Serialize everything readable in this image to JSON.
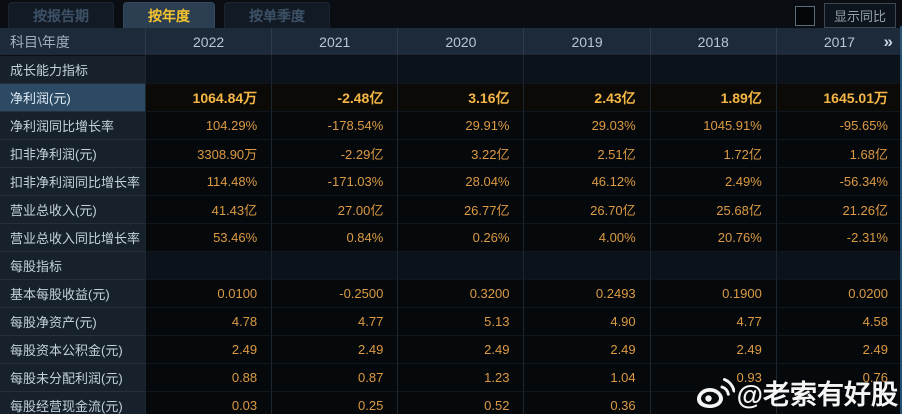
{
  "tabs": [
    {
      "id": "report-period",
      "label": "按报告期",
      "active": false
    },
    {
      "id": "annual",
      "label": "按年度",
      "active": true
    },
    {
      "id": "single-quarter",
      "label": "按单季度",
      "active": false
    }
  ],
  "controls": {
    "show_yoy_label": "显示同比",
    "checkbox_checked": false
  },
  "table": {
    "corner_label": "科目\\年度",
    "years": [
      "2022",
      "2021",
      "2020",
      "2019",
      "2018",
      "2017"
    ],
    "more_icon": "»",
    "rows": [
      {
        "type": "section",
        "label": "成长能力指标",
        "values": [
          "",
          "",
          "",
          "",
          "",
          ""
        ]
      },
      {
        "type": "highlight",
        "label": "净利润(元)",
        "values": [
          "1064.84万",
          "-2.48亿",
          "3.16亿",
          "2.43亿",
          "1.89亿",
          "1645.01万"
        ]
      },
      {
        "type": "data",
        "label": "净利润同比增长率",
        "values": [
          "104.29%",
          "-178.54%",
          "29.91%",
          "29.03%",
          "1045.91%",
          "-95.65%"
        ]
      },
      {
        "type": "data",
        "label": "扣非净利润(元)",
        "values": [
          "3308.90万",
          "-2.29亿",
          "3.22亿",
          "2.51亿",
          "1.72亿",
          "1.68亿"
        ]
      },
      {
        "type": "data",
        "label": "扣非净利润同比增长率",
        "values": [
          "114.48%",
          "-171.03%",
          "28.04%",
          "46.12%",
          "2.49%",
          "-56.34%"
        ]
      },
      {
        "type": "data",
        "label": "营业总收入(元)",
        "values": [
          "41.43亿",
          "27.00亿",
          "26.77亿",
          "26.70亿",
          "25.68亿",
          "21.26亿"
        ]
      },
      {
        "type": "data",
        "label": "营业总收入同比增长率",
        "values": [
          "53.46%",
          "0.84%",
          "0.26%",
          "4.00%",
          "20.76%",
          "-2.31%"
        ]
      },
      {
        "type": "section",
        "label": "每股指标",
        "values": [
          "",
          "",
          "",
          "",
          "",
          ""
        ]
      },
      {
        "type": "data",
        "label": "基本每股收益(元)",
        "values": [
          "0.0100",
          "-0.2500",
          "0.3200",
          "0.2493",
          "0.1900",
          "0.0200"
        ]
      },
      {
        "type": "data",
        "label": "每股净资产(元)",
        "values": [
          "4.78",
          "4.77",
          "5.13",
          "4.90",
          "4.77",
          "4.58"
        ]
      },
      {
        "type": "data",
        "label": "每股资本公积金(元)",
        "values": [
          "2.49",
          "2.49",
          "2.49",
          "2.49",
          "2.49",
          "2.49"
        ]
      },
      {
        "type": "data",
        "label": "每股未分配利润(元)",
        "values": [
          "0.88",
          "0.87",
          "1.23",
          "1.04",
          "0.93",
          "0.76"
        ]
      },
      {
        "type": "data",
        "label": "每股经营现金流(元)",
        "values": [
          "0.03",
          "0.25",
          "0.52",
          "0.36",
          "",
          ""
        ]
      }
    ]
  },
  "watermark": {
    "text": "@老索有好股",
    "icon": "weibo-logo"
  },
  "colors": {
    "accent_gold": "#f6c42e",
    "value_orange": "#dc9a44",
    "highlight_row_label_bg": "#2c4a64",
    "header_bg": "#1c2a39",
    "label_bg": "#16212b",
    "page_bg": "#0a0e13"
  }
}
